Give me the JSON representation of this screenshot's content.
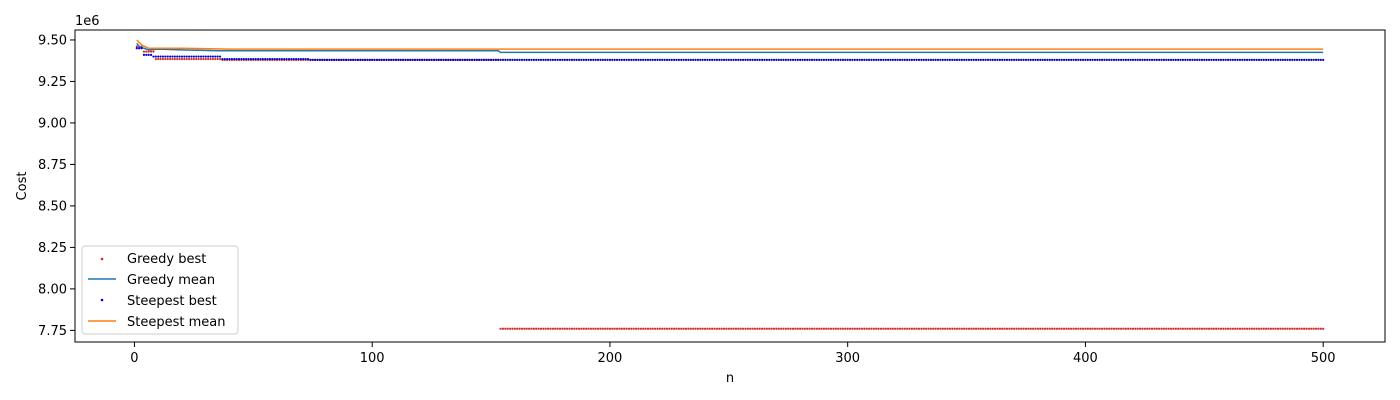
{
  "chart_data": {
    "type": "line",
    "title": "",
    "xlabel": "n",
    "ylabel": "Cost",
    "y_scale_label": "1e6",
    "xlim": [
      -25,
      526
    ],
    "ylim": [
      7.68,
      9.56
    ],
    "x_ticks": [
      0,
      100,
      200,
      300,
      400,
      500
    ],
    "x_tick_labels": [
      "0",
      "100",
      "200",
      "300",
      "400",
      "500"
    ],
    "y_ticks": [
      7.75,
      8.0,
      8.25,
      8.5,
      8.75,
      9.0,
      9.25,
      9.5
    ],
    "y_tick_labels": [
      "7.75",
      "8.00",
      "8.25",
      "8.50",
      "8.75",
      "9.00",
      "9.25",
      "9.50"
    ],
    "grid": false,
    "legend_position": "lower-left",
    "series": [
      {
        "name": "Greedy best",
        "kind": "scatter",
        "color": "#d62728",
        "segments": [
          {
            "x_start": 1,
            "x_end": 3,
            "y": 9.46
          },
          {
            "x_start": 4,
            "x_end": 8,
            "y": 9.43
          },
          {
            "x_start": 9,
            "x_end": 36,
            "y": 9.385
          },
          {
            "x_start": 37,
            "x_end": 153,
            "y": 9.38
          },
          {
            "x_start": 154,
            "x_end": 500,
            "y": 7.76
          }
        ]
      },
      {
        "name": "Greedy mean",
        "kind": "line",
        "color": "#1f77b4",
        "points": [
          [
            1,
            9.48
          ],
          [
            2,
            9.46
          ],
          [
            4,
            9.45
          ],
          [
            6,
            9.44
          ],
          [
            10,
            9.445
          ],
          [
            20,
            9.44
          ],
          [
            35,
            9.435
          ],
          [
            75,
            9.435
          ],
          [
            153,
            9.435
          ],
          [
            154,
            9.425
          ],
          [
            500,
            9.425
          ]
        ]
      },
      {
        "name": "Steepest best",
        "kind": "scatter",
        "color": "#0000cc",
        "segments": [
          {
            "x_start": 1,
            "x_end": 3,
            "y": 9.45
          },
          {
            "x_start": 4,
            "x_end": 7,
            "y": 9.41
          },
          {
            "x_start": 8,
            "x_end": 36,
            "y": 9.4
          },
          {
            "x_start": 37,
            "x_end": 73,
            "y": 9.385
          },
          {
            "x_start": 74,
            "x_end": 500,
            "y": 9.38
          }
        ]
      },
      {
        "name": "Steepest mean",
        "kind": "line",
        "color": "#ff7f0e",
        "points": [
          [
            1,
            9.5
          ],
          [
            3,
            9.47
          ],
          [
            6,
            9.45
          ],
          [
            10,
            9.45
          ],
          [
            20,
            9.45
          ],
          [
            40,
            9.445
          ],
          [
            100,
            9.445
          ],
          [
            500,
            9.445
          ]
        ]
      }
    ]
  }
}
